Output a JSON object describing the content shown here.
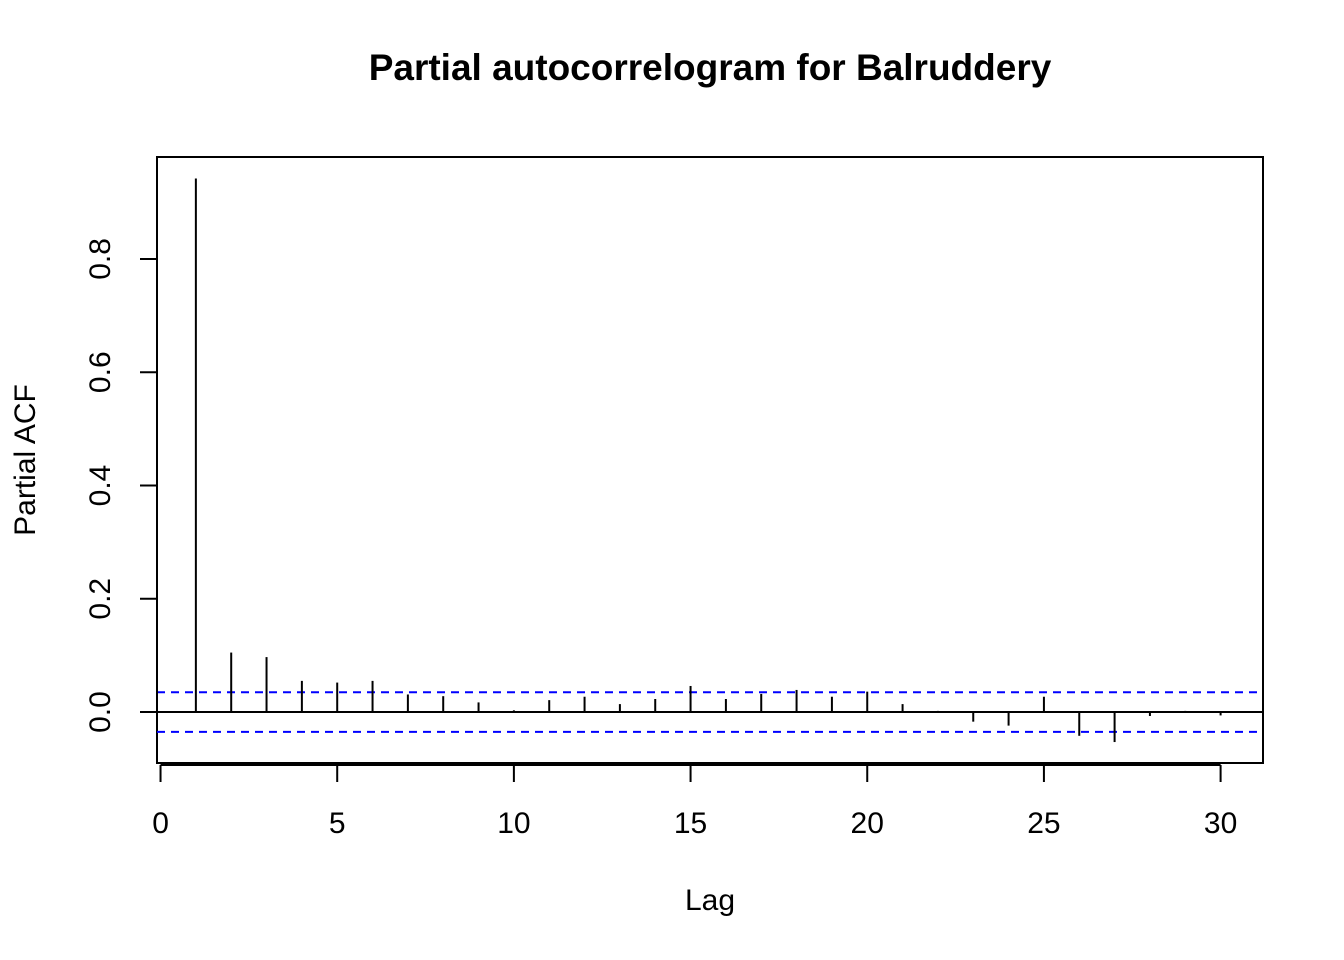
{
  "chart_data": {
    "type": "bar",
    "title": "Partial autocorrelogram for Balruddery",
    "xlabel": "Lag",
    "ylabel": "Partial ACF",
    "xlim": [
      -0.1,
      31.2
    ],
    "ylim": [
      -0.09,
      0.98
    ],
    "x_ticks": [
      0,
      5,
      10,
      15,
      20,
      25,
      30
    ],
    "y_ticks": [
      0.0,
      0.2,
      0.4,
      0.6,
      0.8
    ],
    "y_tick_labels": [
      "0.0",
      "0.2",
      "0.4",
      "0.6",
      "0.8"
    ],
    "confidence_bound": 0.035,
    "colors": {
      "lag_line": "#000000",
      "confidence_line": "#0000ff",
      "frame": "#000000"
    },
    "lags": [
      1,
      2,
      3,
      4,
      5,
      6,
      7,
      8,
      9,
      10,
      11,
      12,
      13,
      14,
      15,
      16,
      17,
      18,
      19,
      20,
      21,
      22,
      23,
      24,
      25,
      26,
      27,
      28,
      29,
      30
    ],
    "values": [
      0.942,
      0.105,
      0.097,
      0.055,
      0.052,
      0.055,
      0.031,
      0.028,
      0.017,
      0.003,
      0.021,
      0.027,
      0.014,
      0.023,
      0.046,
      0.023,
      0.032,
      0.039,
      0.027,
      0.036,
      0.014,
      0.002,
      -0.017,
      -0.024,
      0.027,
      -0.042,
      -0.053,
      -0.007,
      0.002,
      -0.006
    ]
  }
}
